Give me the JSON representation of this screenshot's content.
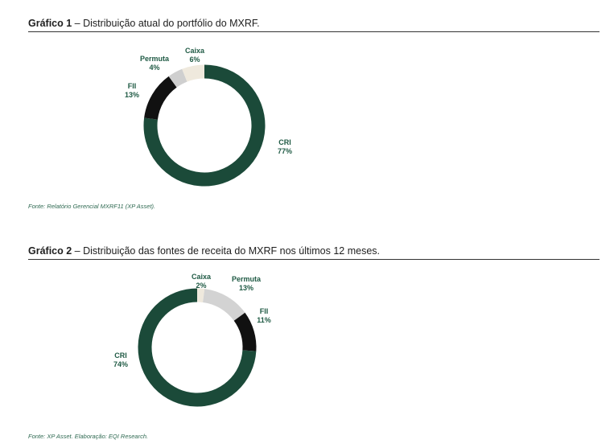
{
  "charts": [
    {
      "title_bold": "Gráfico 1",
      "title_rest": " – Distribuição atual do portfólio do MXRF.",
      "source": "Fonte: Relatório Gerencial MXRF11 (XP Asset)."
    },
    {
      "title_bold": "Gráfico 2",
      "title_rest": " – Distribuição das fontes de receita do MXRF nos últimos 12 meses.",
      "source": "Fonte: XP Asset. Elaboração: EQI Research."
    }
  ],
  "chart_data": [
    {
      "type": "pie",
      "title": "Gráfico 1 – Distribuição atual do portfólio do MXRF.",
      "slices": [
        {
          "label": "CRI",
          "value": 77,
          "text": "77%",
          "color": "#1b4a39"
        },
        {
          "label": "FII",
          "value": 13,
          "text": "13%",
          "color": "#111111"
        },
        {
          "label": "Permuta",
          "value": 4,
          "text": "4%",
          "color": "#cfcfcf"
        },
        {
          "label": "Caixa",
          "value": 6,
          "text": "6%",
          "color": "#efe9dd"
        }
      ]
    },
    {
      "type": "pie",
      "title": "Gráfico 2 – Distribuição das fontes de receita do MXRF nos últimos 12 meses.",
      "slices": [
        {
          "label": "Caixa",
          "value": 2,
          "text": "2%",
          "color": "#efe9dd"
        },
        {
          "label": "Permuta",
          "value": 13,
          "text": "13%",
          "color": "#d3d3d3"
        },
        {
          "label": "FII",
          "value": 11,
          "text": "11%",
          "color": "#111111"
        },
        {
          "label": "CRI",
          "value": 74,
          "text": "74%",
          "color": "#1b4a39"
        }
      ]
    }
  ]
}
